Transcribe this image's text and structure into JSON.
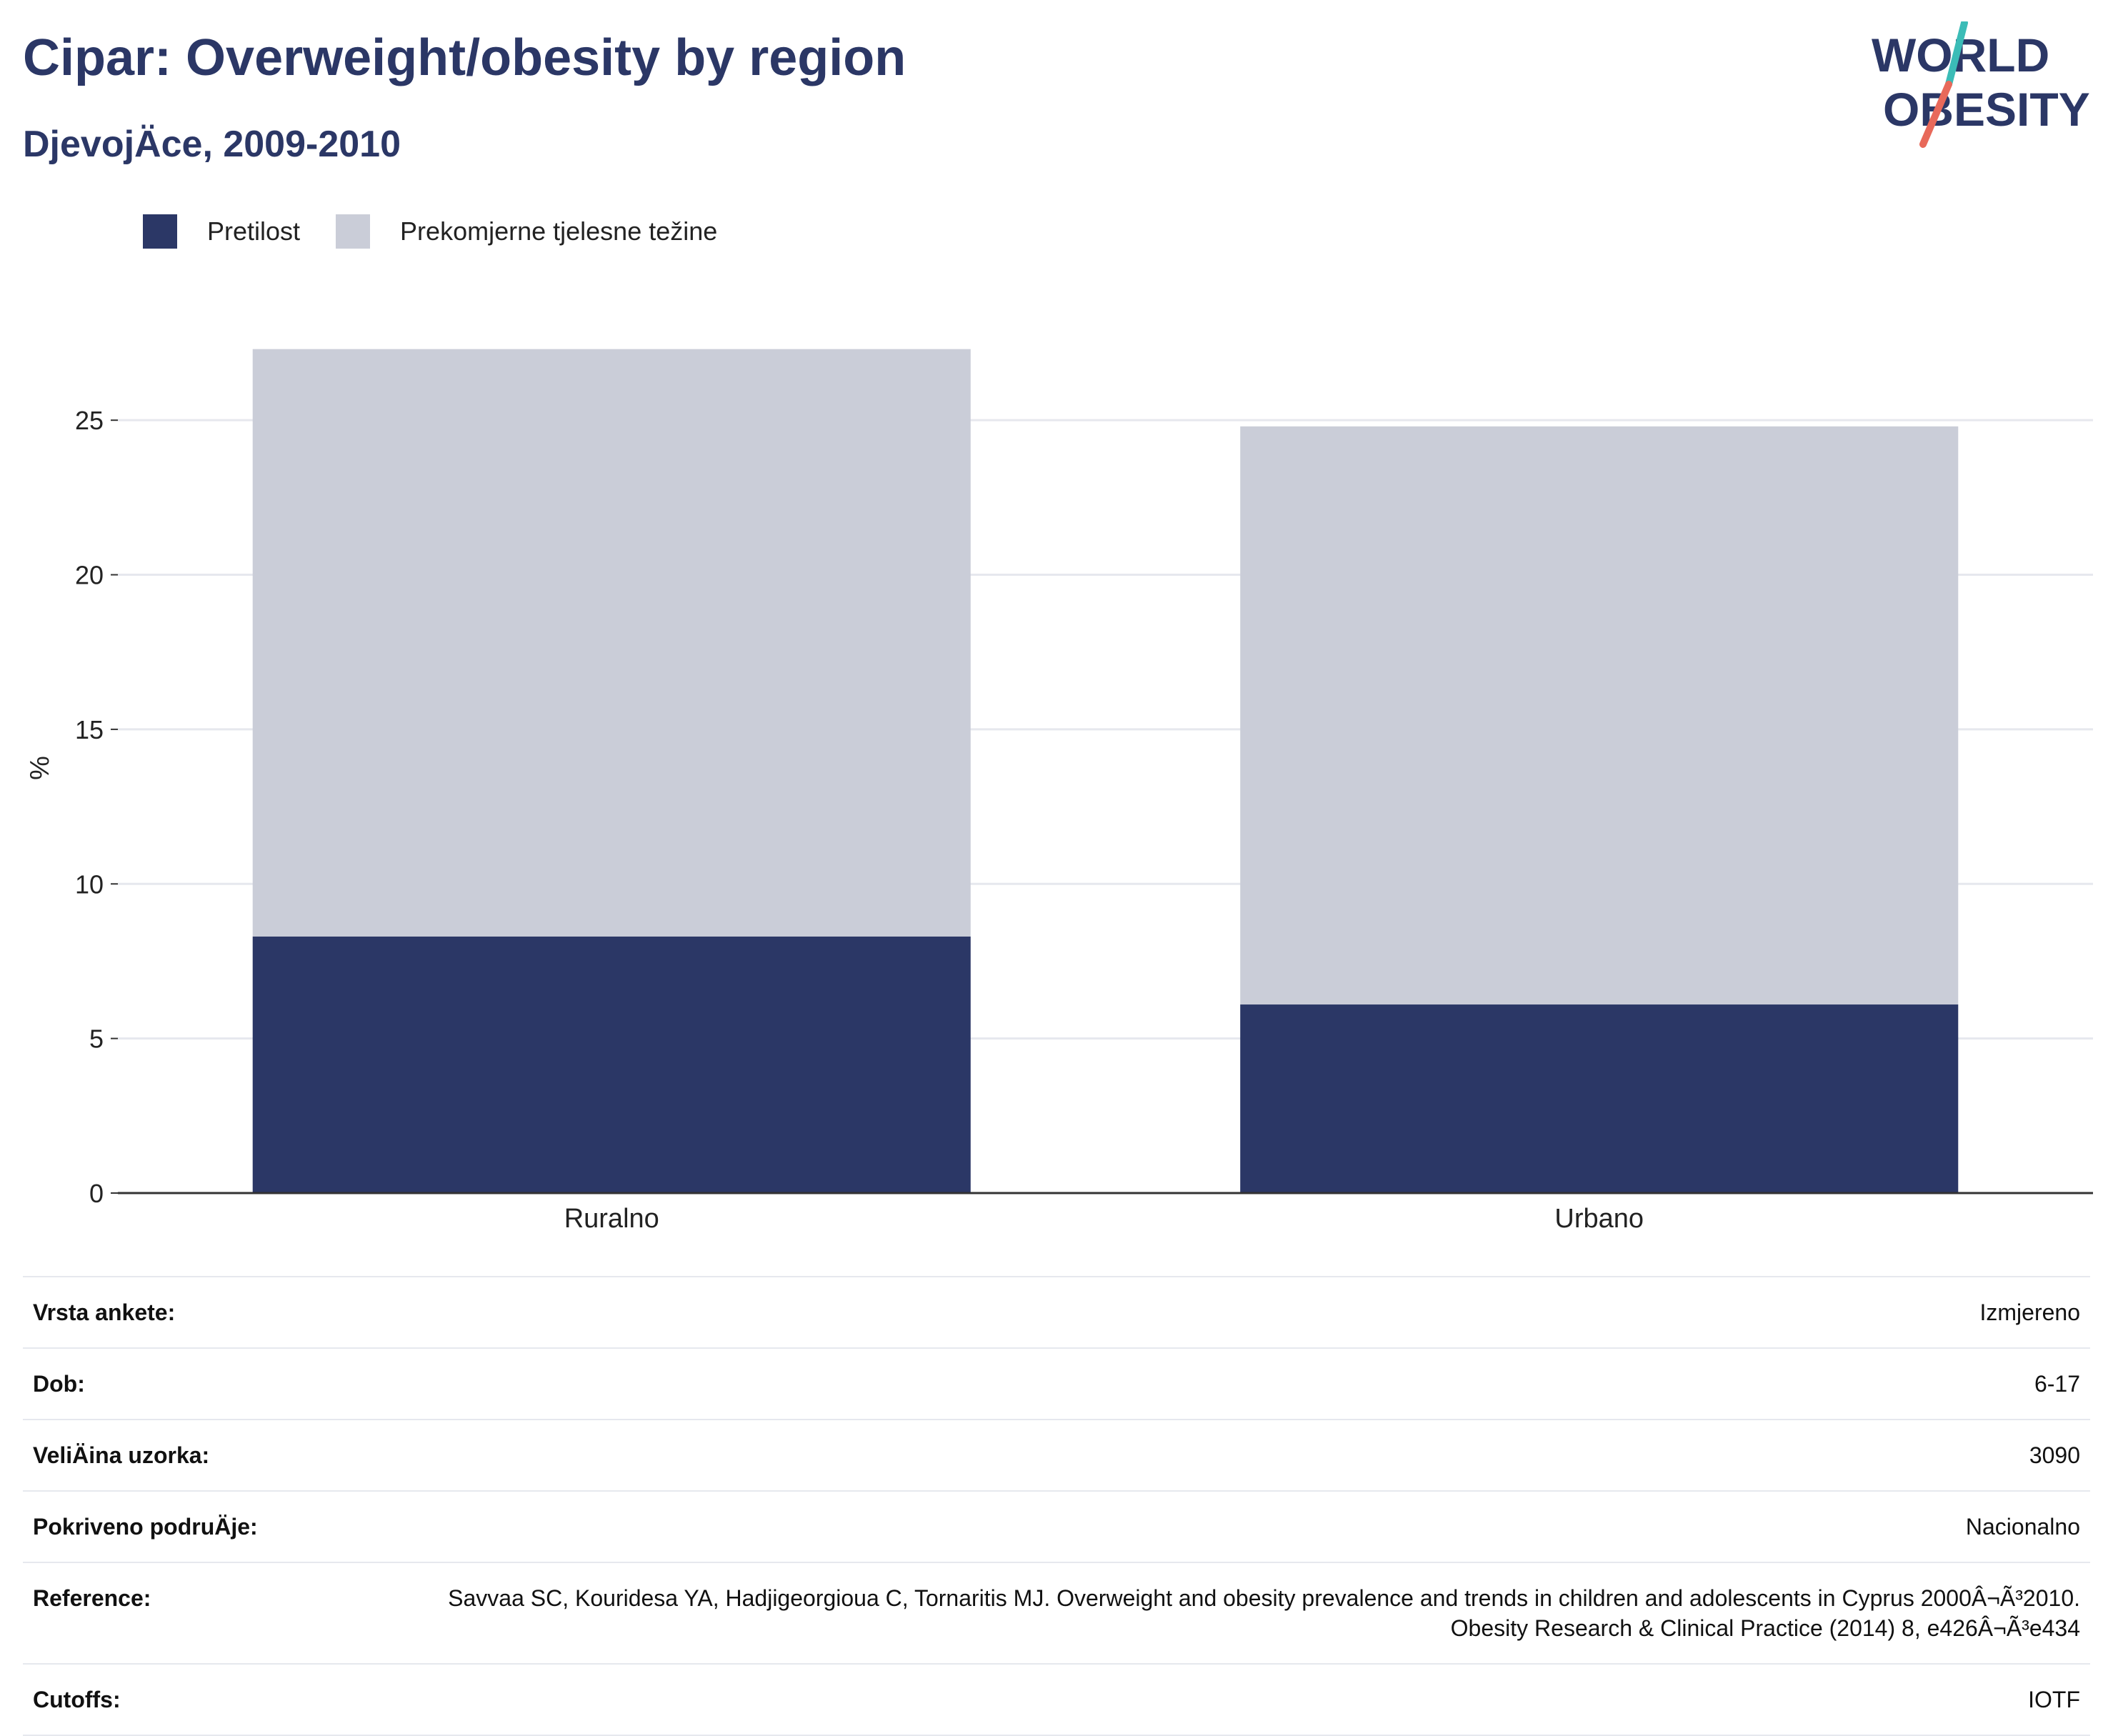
{
  "header": {
    "title": "Cipar: Overweight/obesity by region",
    "subtitle": "DjevojÄce, 2009-2010",
    "logo_line1": "WORLD",
    "logo_line2": "OBESITY"
  },
  "colors": {
    "obesity": "#2b3766",
    "overweight": "#cacdd8",
    "title": "#2b3766",
    "logo_teal": "#3bbcb7",
    "logo_coral": "#e8695a"
  },
  "chart_data": {
    "type": "bar",
    "stacked": true,
    "categories": [
      "Ruralno",
      "Urbano"
    ],
    "series": [
      {
        "name": "Pretilost",
        "values": [
          8.3,
          6.1
        ]
      },
      {
        "name": "Prekomjerne tjelesne težine",
        "values": [
          19.0,
          18.7
        ]
      }
    ],
    "ylabel": "%",
    "ylim": [
      0,
      27.5
    ],
    "yticks": [
      0,
      5,
      10,
      15,
      20,
      25
    ],
    "grid": true,
    "legend_position": "top-left"
  },
  "meta": [
    {
      "label": "Vrsta ankete:",
      "value": "Izmjereno"
    },
    {
      "label": "Dob:",
      "value": "6-17"
    },
    {
      "label": "VeliÄina uzorka:",
      "value": "3090"
    },
    {
      "label": "Pokriveno podruÄje:",
      "value": "Nacionalno"
    },
    {
      "label": "Reference:",
      "value": "Savvaa SC, Kouridesa YA, Hadjigeorgioua C, Tornaritis MJ. Overweight and obesity prevalence and trends in children and adolescents in Cyprus 2000Â¬Ã³2010. Obesity Research & Clinical Practice (2014) 8, e426Â¬Ã³e434"
    },
    {
      "label": "Cutoffs:",
      "value": "IOTF"
    }
  ]
}
